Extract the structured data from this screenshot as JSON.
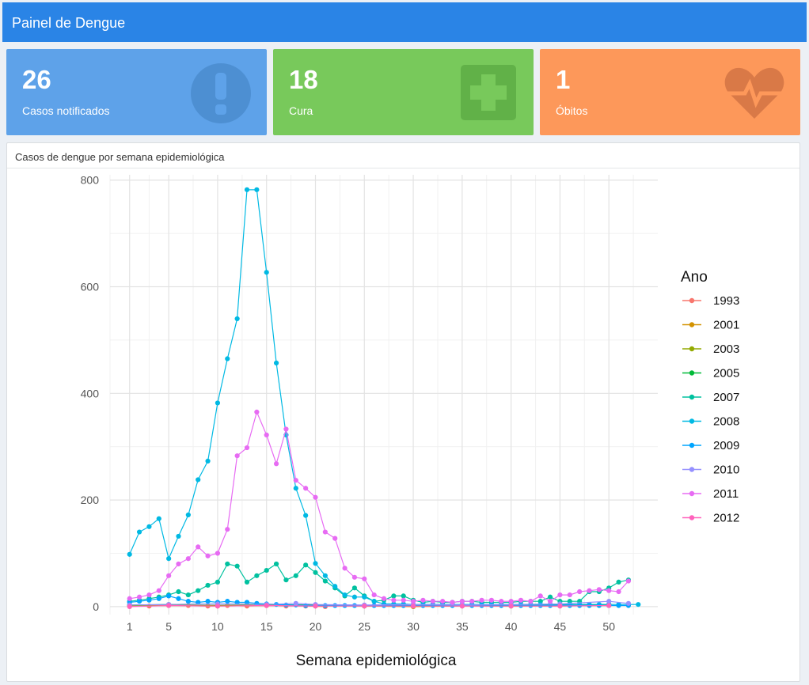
{
  "header": {
    "title": "Painel de Dengue"
  },
  "boxes": [
    {
      "value": "26",
      "label": "Casos notificados",
      "icon": "exclamation-circle-icon",
      "color": "#5ea2e9"
    },
    {
      "value": "18",
      "label": "Cura",
      "icon": "plus-square-icon",
      "color": "#78c95b"
    },
    {
      "value": "1",
      "label": "Óbitos",
      "icon": "heartbeat-icon",
      "color": "#fd985a"
    }
  ],
  "panel": {
    "title": "Casos de dengue por semana epidemiológica"
  },
  "chart_data": {
    "type": "line",
    "xlabel": "Semana epidemiológica",
    "ylabel": "",
    "legend_title": "Ano",
    "legend_position": "right",
    "grid": true,
    "xlim": [
      -1,
      55
    ],
    "ylim": [
      -15,
      810
    ],
    "x_ticks": [
      1,
      5,
      10,
      15,
      20,
      25,
      30,
      35,
      40,
      45,
      50
    ],
    "y_ticks": [
      0,
      200,
      400,
      600,
      800
    ],
    "series": [
      {
        "name": "1993",
        "color": "#f8766d",
        "x": [
          1,
          3,
          5,
          7,
          9,
          11,
          13,
          15,
          17,
          19,
          21
        ],
        "values": [
          2,
          1,
          3,
          2,
          1,
          2,
          1,
          2,
          1,
          1,
          0
        ]
      },
      {
        "name": "2001",
        "color": "#d39200",
        "x": [
          1,
          5,
          10,
          15,
          20,
          25,
          30,
          35,
          40,
          45,
          50
        ],
        "values": [
          1,
          2,
          1,
          2,
          1,
          1,
          0,
          1,
          1,
          1,
          2
        ]
      },
      {
        "name": "2003",
        "color": "#93aa00",
        "x": [
          1,
          5,
          10,
          15,
          20,
          25,
          30,
          35,
          40,
          45,
          50
        ],
        "values": [
          2,
          3,
          2,
          3,
          2,
          1,
          1,
          2,
          1,
          2,
          3
        ]
      },
      {
        "name": "2005",
        "color": "#00ba38",
        "x": [
          1,
          5,
          10,
          15,
          20,
          25,
          30,
          35,
          40,
          45,
          50
        ],
        "values": [
          3,
          4,
          5,
          4,
          3,
          2,
          2,
          3,
          2,
          3,
          4
        ]
      },
      {
        "name": "2007",
        "color": "#00c19f",
        "x": [
          1,
          2,
          3,
          4,
          5,
          6,
          7,
          8,
          9,
          10,
          11,
          12,
          13,
          14,
          15,
          16,
          17,
          18,
          19,
          20,
          21,
          22,
          23,
          24,
          25,
          26,
          27,
          28,
          29,
          30,
          31,
          32,
          33,
          34,
          35,
          36,
          37,
          38,
          39,
          40,
          41,
          42,
          43,
          44,
          45,
          46,
          47,
          48,
          49,
          50,
          51,
          52
        ],
        "values": [
          10,
          12,
          15,
          18,
          22,
          28,
          22,
          30,
          40,
          46,
          80,
          76,
          46,
          58,
          68,
          80,
          50,
          58,
          78,
          64,
          48,
          35,
          20,
          35,
          20,
          10,
          12,
          20,
          20,
          12,
          8,
          10,
          8,
          8,
          10,
          10,
          8,
          8,
          8,
          8,
          10,
          10,
          10,
          18,
          10,
          10,
          10,
          28,
          28,
          35,
          46,
          50
        ]
      },
      {
        "name": "2008",
        "color": "#00b9e3",
        "x": [
          1,
          2,
          3,
          4,
          5,
          6,
          7,
          8,
          9,
          10,
          11,
          12,
          13,
          14,
          15,
          16,
          17,
          18,
          19,
          20,
          21,
          22,
          23,
          24,
          25,
          26,
          27,
          28,
          29,
          30,
          31,
          32,
          33,
          34,
          35,
          36,
          37,
          38,
          39,
          40,
          41,
          42,
          43,
          44,
          45,
          46,
          47,
          48,
          49,
          50,
          51,
          52,
          53
        ],
        "values": [
          98,
          140,
          150,
          165,
          90,
          132,
          172,
          238,
          273,
          382,
          465,
          540,
          782,
          782,
          627,
          457,
          322,
          222,
          171,
          81,
          58,
          38,
          22,
          18,
          18,
          10,
          5,
          5,
          5,
          4,
          4,
          4,
          4,
          4,
          4,
          4,
          4,
          4,
          4,
          4,
          4,
          4,
          4,
          4,
          4,
          4,
          4,
          4,
          4,
          4,
          4,
          4,
          4
        ]
      },
      {
        "name": "2009",
        "color": "#00a5ff",
        "x": [
          1,
          2,
          3,
          4,
          5,
          6,
          7,
          8,
          9,
          10,
          11,
          12,
          13,
          14,
          15,
          16,
          17,
          18,
          19,
          20,
          21,
          22,
          23,
          24,
          25,
          26,
          27,
          28,
          29,
          30,
          31,
          32,
          33,
          34,
          35,
          36,
          37,
          38,
          39,
          40,
          41,
          42,
          43,
          44,
          45,
          46,
          47,
          48,
          49,
          50,
          51,
          52
        ],
        "values": [
          8,
          10,
          12,
          15,
          20,
          15,
          10,
          8,
          10,
          8,
          10,
          8,
          8,
          6,
          5,
          4,
          3,
          3,
          2,
          2,
          2,
          2,
          2,
          2,
          2,
          2,
          2,
          2,
          2,
          2,
          2,
          2,
          2,
          2,
          2,
          2,
          2,
          2,
          2,
          2,
          2,
          2,
          2,
          2,
          2,
          2,
          2,
          2,
          2,
          2,
          2,
          2
        ]
      },
      {
        "name": "2010",
        "color": "#9590ff",
        "x": [
          1,
          5,
          10,
          15,
          18,
          20,
          25,
          30,
          35,
          40,
          45,
          50,
          52
        ],
        "values": [
          3,
          4,
          5,
          4,
          6,
          4,
          3,
          4,
          3,
          4,
          5,
          10,
          6
        ]
      },
      {
        "name": "2011",
        "color": "#e76bf3",
        "x": [
          1,
          2,
          3,
          4,
          5,
          6,
          7,
          8,
          9,
          10,
          11,
          12,
          13,
          14,
          15,
          16,
          17,
          18,
          19,
          20,
          21,
          22,
          23,
          24,
          25,
          26,
          27,
          28,
          29,
          30,
          31,
          32,
          33,
          34,
          35,
          36,
          37,
          38,
          39,
          40,
          41,
          42,
          43,
          44,
          45,
          46,
          47,
          48,
          49,
          50,
          51,
          52
        ],
        "values": [
          15,
          18,
          22,
          30,
          58,
          80,
          90,
          112,
          95,
          100,
          145,
          283,
          298,
          365,
          322,
          268,
          333,
          237,
          222,
          205,
          140,
          128,
          72,
          55,
          52,
          22,
          15,
          12,
          12,
          10,
          12,
          10,
          10,
          8,
          10,
          10,
          12,
          12,
          10,
          10,
          12,
          10,
          20,
          10,
          22,
          22,
          28,
          30,
          32,
          30,
          28,
          48
        ]
      },
      {
        "name": "2012",
        "color": "#ff62bc",
        "x": [
          1,
          5,
          10,
          15,
          20,
          25,
          30,
          35,
          40,
          45,
          50
        ],
        "values": [
          0,
          2,
          1,
          2,
          1,
          1,
          1,
          1,
          1,
          1,
          2
        ]
      }
    ]
  }
}
